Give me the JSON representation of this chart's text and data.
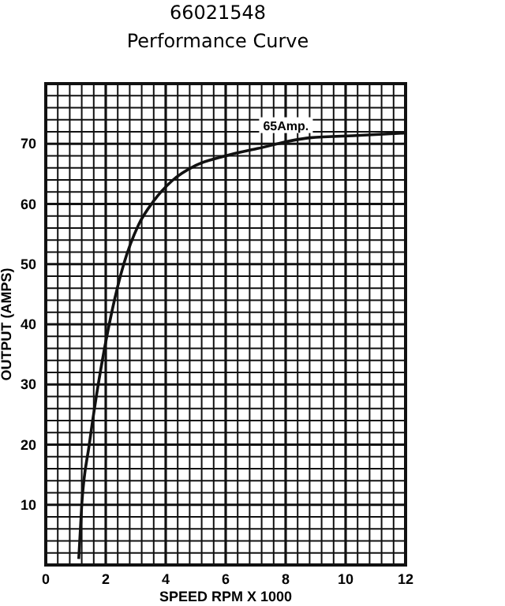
{
  "chart_data": {
    "type": "line",
    "title": "66021548",
    "subtitle": "Performance Curve",
    "xlabel": "SPEED  RPM  X  1000",
    "ylabel": "OUTPUT  (AMPS)",
    "x": [
      1.1,
      1.2,
      1.45,
      1.75,
      2.2,
      2.6,
      3.1,
      3.6,
      4.2,
      5,
      6,
      7.05,
      8.8,
      10.5,
      12
    ],
    "series": [
      {
        "color": "#111111",
        "values": [
          1,
          10,
          20,
          30,
          42,
          50,
          56.6,
          60.5,
          63.8,
          66.4,
          68,
          69.2,
          71,
          71.4,
          71.8
        ]
      }
    ],
    "xlim": [
      0,
      12
    ],
    "ylim": [
      0,
      80
    ],
    "xticks": [
      0,
      {
        "value": 0.4,
        "label": null
      },
      {
        "value": 0.8,
        "label": null
      },
      {
        "value": 1.2,
        "label": null
      },
      {
        "value": 1.6,
        "label": null
      },
      2,
      {
        "value": 2.4,
        "label": null
      },
      {
        "value": 2.8,
        "label": null
      },
      {
        "value": 3.2,
        "label": null
      },
      {
        "value": 3.6,
        "label": null
      },
      4,
      {
        "value": 4.4,
        "label": null
      },
      {
        "value": 4.8,
        "label": null
      },
      {
        "value": 5.2,
        "label": null
      },
      {
        "value": 5.6,
        "label": null
      },
      6,
      {
        "value": 6.4,
        "label": null
      },
      {
        "value": 6.8,
        "label": null
      },
      {
        "value": 7.2,
        "label": null
      },
      {
        "value": 7.6,
        "label": null
      },
      8,
      {
        "value": 8.4,
        "label": null
      },
      {
        "value": 8.8,
        "label": null
      },
      {
        "value": 9.2,
        "label": null
      },
      {
        "value": 9.6,
        "label": null
      },
      10,
      {
        "value": 10.4,
        "label": null
      },
      {
        "value": 10.8,
        "label": null
      },
      {
        "value": 11.2,
        "label": null
      },
      {
        "value": 11.6,
        "label": null
      },
      12
    ],
    "yticks": [
      {
        "value": 0,
        "label": null
      },
      {
        "value": 2,
        "label": null
      },
      {
        "value": 4,
        "label": null
      },
      {
        "value": 6,
        "label": null
      },
      {
        "value": 8,
        "label": null
      },
      10,
      {
        "value": 12,
        "label": null
      },
      {
        "value": 14,
        "label": null
      },
      {
        "value": 16,
        "label": null
      },
      {
        "value": 18,
        "label": null
      },
      20,
      {
        "value": 22,
        "label": null
      },
      {
        "value": 24,
        "label": null
      },
      {
        "value": 26,
        "label": null
      },
      {
        "value": 28,
        "label": null
      },
      30,
      {
        "value": 32,
        "label": null
      },
      {
        "value": 34,
        "label": null
      },
      {
        "value": 36,
        "label": null
      },
      {
        "value": 38,
        "label": null
      },
      40,
      {
        "value": 42,
        "label": null
      },
      {
        "value": 44,
        "label": null
      },
      {
        "value": 46,
        "label": null
      },
      {
        "value": 48,
        "label": null
      },
      50,
      {
        "value": 52,
        "label": null
      },
      {
        "value": 54,
        "label": null
      },
      {
        "value": 56,
        "label": null
      },
      {
        "value": 58,
        "label": null
      },
      60,
      {
        "value": 62,
        "label": null
      },
      {
        "value": 64,
        "label": null
      },
      {
        "value": 66,
        "label": null
      },
      {
        "value": 68,
        "label": null
      },
      70,
      {
        "value": 72,
        "label": null
      },
      {
        "value": 74,
        "label": null
      },
      {
        "value": 76,
        "label": null
      },
      {
        "value": 78,
        "label": null
      },
      {
        "value": 80,
        "label": null
      }
    ],
    "grid": true,
    "line_style": "solid",
    "marker": "none",
    "annotations": [
      {
        "text": "65Amp.",
        "x": 8.8,
        "y": 71
      }
    ]
  }
}
